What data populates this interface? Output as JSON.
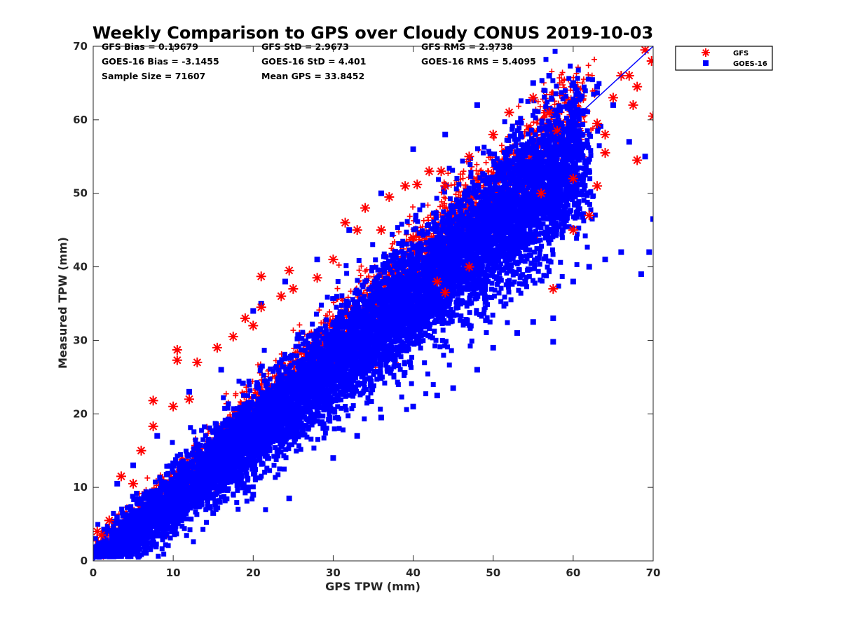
{
  "chart_data": {
    "type": "scatter",
    "title": "Weekly Comparison to GPS over Cloudy CONUS 2019-10-03",
    "xlabel": "GPS TPW (mm)",
    "ylabel": "Measured TPW (mm)",
    "xlim": [
      0,
      70
    ],
    "ylim": [
      0,
      70
    ],
    "xticks": [
      "0",
      "10",
      "20",
      "30",
      "40",
      "50",
      "60",
      "70"
    ],
    "yticks": [
      "0",
      "10",
      "20",
      "30",
      "40",
      "50",
      "60",
      "70"
    ],
    "grid": false,
    "legend_position": "outside-top-right",
    "stats": [
      [
        "GFS Bias = 0.19679",
        "GFS StD = 2.9673",
        "GFS RMS = 2.9738"
      ],
      [
        "GOES-16 Bias = -3.1455",
        "GOES-16 StD = 4.401",
        "GOES-16 RMS = 5.4095"
      ],
      [
        "Sample Size = 71607",
        "Mean GPS = 33.8452",
        ""
      ]
    ],
    "reference_line": {
      "from": [
        0,
        0
      ],
      "to": [
        70,
        70
      ],
      "color": "#0000ff"
    },
    "series": [
      {
        "name": "GFS",
        "marker": "asterisk",
        "color": "#ff0000",
        "bias": 0.19679,
        "std": 2.9673,
        "points": [
          [
            0.5,
            4.0
          ],
          [
            1.0,
            3.5
          ],
          [
            2.0,
            5.5
          ],
          [
            3.5,
            11.5
          ],
          [
            5.0,
            10.5
          ],
          [
            6.0,
            15.0
          ],
          [
            7.5,
            21.8
          ],
          [
            7.5,
            18.3
          ],
          [
            10.5,
            28.7
          ],
          [
            10.5,
            27.3
          ],
          [
            10.0,
            21.0
          ],
          [
            12.0,
            22.0
          ],
          [
            13.0,
            27.0
          ],
          [
            15.5,
            29.0
          ],
          [
            17.5,
            30.5
          ],
          [
            19.0,
            33.0
          ],
          [
            20.0,
            32.0
          ],
          [
            21.0,
            38.7
          ],
          [
            21.0,
            34.5
          ],
          [
            23.5,
            36.0
          ],
          [
            24.5,
            39.5
          ],
          [
            25.0,
            37.0
          ],
          [
            28.0,
            38.5
          ],
          [
            30.0,
            41.0
          ],
          [
            31.5,
            46.0
          ],
          [
            33.0,
            45.0
          ],
          [
            34.0,
            48.0
          ],
          [
            37.0,
            49.5
          ],
          [
            39.0,
            51.0
          ],
          [
            40.5,
            51.2
          ],
          [
            42.0,
            53.0
          ],
          [
            43.5,
            53.0
          ],
          [
            44.0,
            51.0
          ],
          [
            47.0,
            55.0
          ],
          [
            50.0,
            58.0
          ],
          [
            52.0,
            61.0
          ],
          [
            55.0,
            63.0
          ],
          [
            57.0,
            61.0
          ],
          [
            58.0,
            58.5
          ],
          [
            60.0,
            52.0
          ],
          [
            60.0,
            45.0
          ],
          [
            57.5,
            37.0
          ],
          [
            62.0,
            47.0
          ],
          [
            63.0,
            59.5
          ],
          [
            64.0,
            58.0
          ],
          [
            64.0,
            55.5
          ],
          [
            65.0,
            63.0
          ],
          [
            66.0,
            66.0
          ],
          [
            67.0,
            66.0
          ],
          [
            67.5,
            62.0
          ],
          [
            68.0,
            64.5
          ],
          [
            69.0,
            69.5
          ],
          [
            69.8,
            68.0
          ],
          [
            70.0,
            60.5
          ],
          [
            68.0,
            54.5
          ],
          [
            63.0,
            51.0
          ],
          [
            56.0,
            50.0
          ],
          [
            47.0,
            40.0
          ],
          [
            44.0,
            36.5
          ],
          [
            43.0,
            38.0
          ],
          [
            40.0,
            44.0
          ],
          [
            36.0,
            45.0
          ]
        ]
      },
      {
        "name": "GOES-16",
        "marker": "square",
        "color": "#0000ff",
        "bias": -3.1455,
        "std": 4.401,
        "points": [
          [
            1.5,
            1.5
          ],
          [
            3.0,
            2.0
          ],
          [
            5.0,
            3.5
          ],
          [
            3.0,
            10.5
          ],
          [
            10.0,
            4.0
          ],
          [
            15.0,
            6.5
          ],
          [
            20.0,
            9.0
          ],
          [
            24.5,
            8.5
          ],
          [
            30.0,
            14.0
          ],
          [
            33.0,
            17.0
          ],
          [
            36.0,
            19.5
          ],
          [
            40.0,
            21.0
          ],
          [
            43.0,
            22.5
          ],
          [
            45.0,
            23.5
          ],
          [
            48.0,
            26.0
          ],
          [
            50.0,
            29.0
          ],
          [
            53.0,
            31.0
          ],
          [
            55.0,
            32.5
          ],
          [
            57.5,
            29.8
          ],
          [
            57.5,
            33.0
          ],
          [
            60.0,
            38.0
          ],
          [
            62.0,
            40.0
          ],
          [
            64.0,
            41.0
          ],
          [
            66.0,
            42.0
          ],
          [
            68.5,
            39.0
          ],
          [
            69.5,
            42.0
          ],
          [
            70.0,
            46.5
          ],
          [
            69.0,
            55.0
          ],
          [
            67.0,
            57.0
          ],
          [
            65.0,
            62.0
          ],
          [
            63.0,
            64.5
          ],
          [
            60.0,
            65.0
          ],
          [
            57.0,
            66.0
          ],
          [
            55.0,
            65.0
          ],
          [
            48.0,
            62.0
          ],
          [
            44.0,
            58.0
          ],
          [
            40.0,
            56.0
          ],
          [
            36.0,
            50.0
          ],
          [
            32.0,
            45.0
          ],
          [
            28.0,
            41.0
          ],
          [
            24.0,
            38.0
          ],
          [
            20.0,
            34.0
          ],
          [
            16.0,
            26.0
          ],
          [
            12.0,
            23.0
          ],
          [
            8.0,
            17.0
          ],
          [
            5.0,
            13.0
          ],
          [
            21.0,
            35.0
          ],
          [
            38.0,
            34.0
          ],
          [
            54.0,
            38.0
          ]
        ]
      }
    ]
  }
}
